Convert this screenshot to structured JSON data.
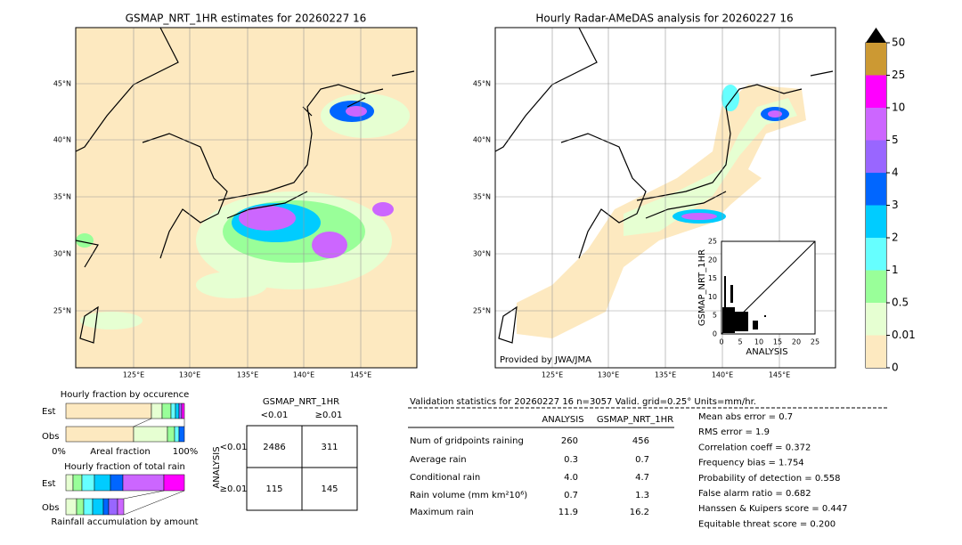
{
  "left_map": {
    "title": "GSMAP_NRT_1HR estimates for 20260227 16",
    "lat_labels": [
      "45°N",
      "40°N",
      "35°N",
      "30°N",
      "25°N"
    ],
    "lon_labels": [
      "125°E",
      "130°E",
      "135°E",
      "140°E",
      "145°E"
    ]
  },
  "right_map": {
    "title": "Hourly Radar-AMeDAS analysis for 20260227 16",
    "lat_labels": [
      "45°N",
      "40°N",
      "35°N",
      "30°N",
      "25°N"
    ],
    "lon_labels": [
      "125°E",
      "130°E",
      "135°E",
      "140°E",
      "145°E"
    ],
    "credit": "Provided by JWA/JMA"
  },
  "scatter": {
    "ylabel": "GSMAP_NRT_1HR",
    "xlabel": "ANALYSIS",
    "ticks": [
      "0",
      "5",
      "10",
      "15",
      "20",
      "25"
    ]
  },
  "colorbar": {
    "labels": [
      "0",
      "0.01",
      "0.5",
      "1",
      "2",
      "3",
      "4",
      "5",
      "10",
      "25",
      "50"
    ],
    "colors": [
      "#fde9c0",
      "#e6ffd2",
      "#99ff99",
      "#66ffff",
      "#00ccff",
      "#0066ff",
      "#9966ff",
      "#cc66ff",
      "#ff00ff",
      "#cc9933"
    ]
  },
  "fraction_occurrence": {
    "title": "Hourly fraction by occurence",
    "rows": [
      "Est",
      "Obs"
    ],
    "axis": [
      "0%",
      "Areal fraction",
      "100%"
    ]
  },
  "fraction_total": {
    "title": "Hourly fraction of total rain",
    "rows": [
      "Est",
      "Obs"
    ],
    "footer": "Rainfall accumulation by amount"
  },
  "contingency": {
    "title": "GSMAP_NRT_1HR",
    "cols": [
      "<0.01",
      "≥0.01"
    ],
    "rows_label": "ANALYSIS",
    "rows": [
      "<0.01",
      "≥0.01"
    ],
    "cells": [
      [
        "2486",
        "311"
      ],
      [
        "115",
        "145"
      ]
    ]
  },
  "validation": {
    "header": "Validation statistics for 20260227 16  n=3057 Valid. grid=0.25° Units=mm/hr.",
    "columns": [
      "ANALYSIS",
      "GSMAP_NRT_1HR"
    ],
    "rows": [
      {
        "label": "Num of gridpoints raining",
        "values": [
          "260",
          "456"
        ]
      },
      {
        "label": "Average rain",
        "values": [
          "0.3",
          "0.7"
        ]
      },
      {
        "label": "Conditional rain",
        "values": [
          "4.0",
          "4.7"
        ]
      },
      {
        "label": "Rain volume (mm km²10⁶)",
        "values": [
          "0.7",
          "1.3"
        ]
      },
      {
        "label": "Maximum rain",
        "values": [
          "11.9",
          "16.2"
        ]
      }
    ],
    "scores": [
      "Mean abs error =    0.7",
      "RMS error =    1.9",
      "Correlation coeff =  0.372",
      "Frequency bias =  1.754",
      "Probability of detection =  0.558",
      "False alarm ratio =  0.682",
      "Hanssen & Kuipers score =  0.447",
      "Equitable threat score =  0.200"
    ]
  }
}
